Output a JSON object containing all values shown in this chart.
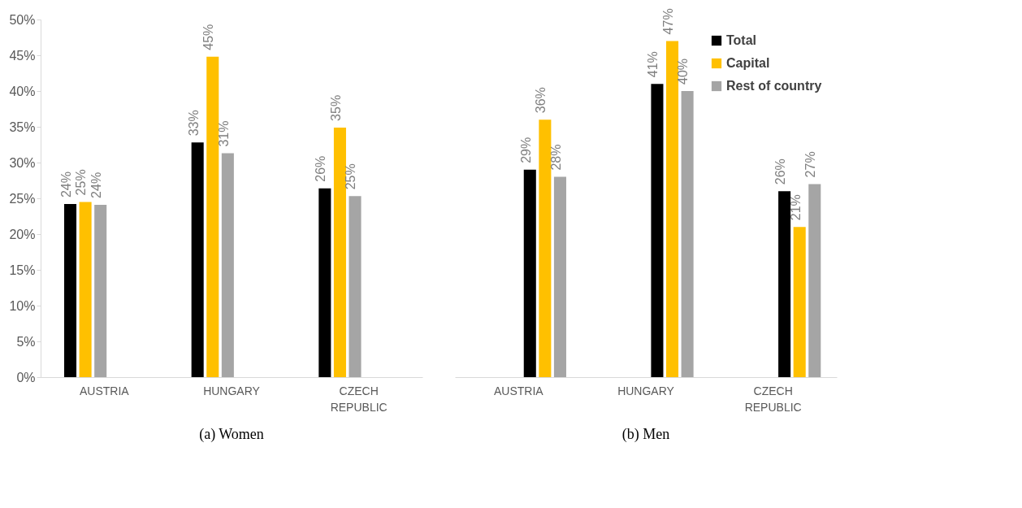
{
  "chart_data": [
    {
      "type": "bar",
      "title": "(a) Women",
      "categories": [
        "AUSTRIA",
        "HUNGARY",
        "CZECH REPUBLIC"
      ],
      "ylim": [
        0,
        50
      ],
      "yticks": [
        {
          "value": 0,
          "label": "0%"
        },
        {
          "value": 5,
          "label": "5%"
        },
        {
          "value": 10,
          "label": "10%"
        },
        {
          "value": 15,
          "label": "15%"
        },
        {
          "value": 20,
          "label": "20%"
        },
        {
          "value": 25,
          "label": "25%"
        },
        {
          "value": 30,
          "label": "30%"
        },
        {
          "value": 35,
          "label": "35%"
        },
        {
          "value": 40,
          "label": "40%"
        },
        {
          "value": 45,
          "label": "45%"
        },
        {
          "value": 50,
          "label": "50%"
        }
      ],
      "grid": false,
      "legend": false,
      "series": [
        {
          "color": "#000000",
          "values": [
            24.2,
            32.8,
            26.4
          ],
          "value_labels": [
            "24%",
            "33%",
            "26%"
          ]
        },
        {
          "color": "#ffc000",
          "values": [
            24.5,
            44.8,
            34.9
          ],
          "value_labels": [
            "25%",
            "45%",
            "35%"
          ]
        },
        {
          "color": "#a5a5a5",
          "values": [
            24.1,
            31.3,
            25.3
          ],
          "value_labels": [
            "24%",
            "31%",
            "25%"
          ]
        }
      ]
    },
    {
      "type": "bar",
      "title": "(b) Men",
      "categories": [
        "AUSTRIA",
        "HUNGARY",
        "CZECH REPUBLIC"
      ],
      "tick_labels": "x",
      "grid": false,
      "legend": "top right",
      "series": [
        {
          "name": "Total",
          "color": "#000000",
          "values": [
            29,
            41,
            26
          ],
          "value_labels": [
            "29%",
            "41%",
            "26%"
          ]
        },
        {
          "name": "Capital",
          "color": "#ffc000",
          "values": [
            36,
            47,
            21
          ],
          "value_labels": [
            "36%",
            "47%",
            "21%"
          ]
        },
        {
          "name": "Rest of country",
          "color": "#a5a5a5",
          "values": [
            28,
            40,
            27
          ],
          "value_labels": [
            "28%",
            "40%",
            "27%"
          ]
        }
      ]
    }
  ]
}
